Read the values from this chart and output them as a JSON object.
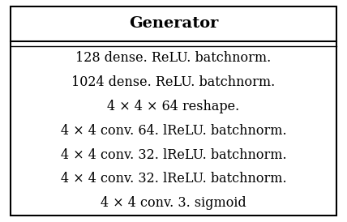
{
  "title": "Generator",
  "rows": [
    "128 dense. ReLU. batchnorm.",
    "1024 dense. ReLU. batchnorm.",
    "4 × 4 × 64 reshape.",
    "4 × 4 conv. 64. lReLU. batchnorm.",
    "4 × 4 conv. 32. lReLU. batchnorm.",
    "4 × 4 conv. 32. lReLU. batchnorm.",
    "4 × 4 conv. 3. sigmoid"
  ],
  "background_color": "#ffffff",
  "border_color": "#000000",
  "title_fontsize": 14,
  "body_fontsize": 11.5,
  "fig_width": 4.28,
  "fig_height": 2.74,
  "dpi": 100
}
